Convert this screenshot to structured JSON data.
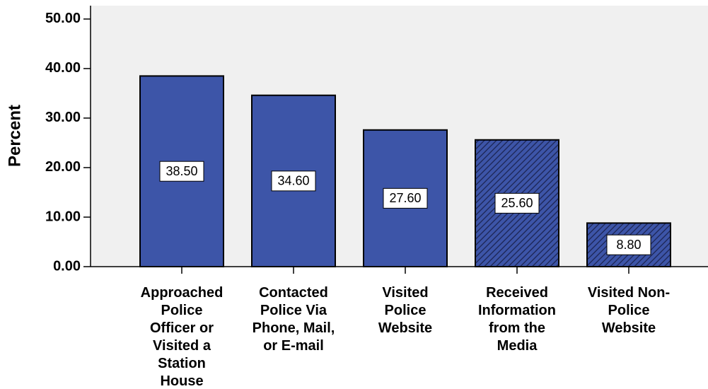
{
  "chart_data": {
    "type": "bar",
    "y_label": "Percent",
    "categories": [
      "Approached Police Officer or Visited a Station House",
      "Contacted Police Via Phone, Mail, or E-mail",
      "Visited Police Website",
      "Received Information from the Media",
      "Visited Non-Police Website"
    ],
    "values": [
      38.5,
      34.6,
      27.6,
      25.6,
      8.8
    ],
    "value_labels": [
      "38.50",
      "34.60",
      "27.60",
      "25.60",
      "8.80"
    ],
    "hatched": [
      false,
      false,
      false,
      true,
      true
    ],
    "color": "#3d55a8",
    "ylim": [
      0,
      52.7
    ],
    "yticks": [
      {
        "value": 0,
        "label": "0.00"
      },
      {
        "value": 10,
        "label": "10.00"
      },
      {
        "value": 20,
        "label": "20.00"
      },
      {
        "value": 30,
        "label": "30.00"
      },
      {
        "value": 40,
        "label": "40.00"
      },
      {
        "value": 50,
        "label": "50.00"
      }
    ],
    "grid": false
  }
}
